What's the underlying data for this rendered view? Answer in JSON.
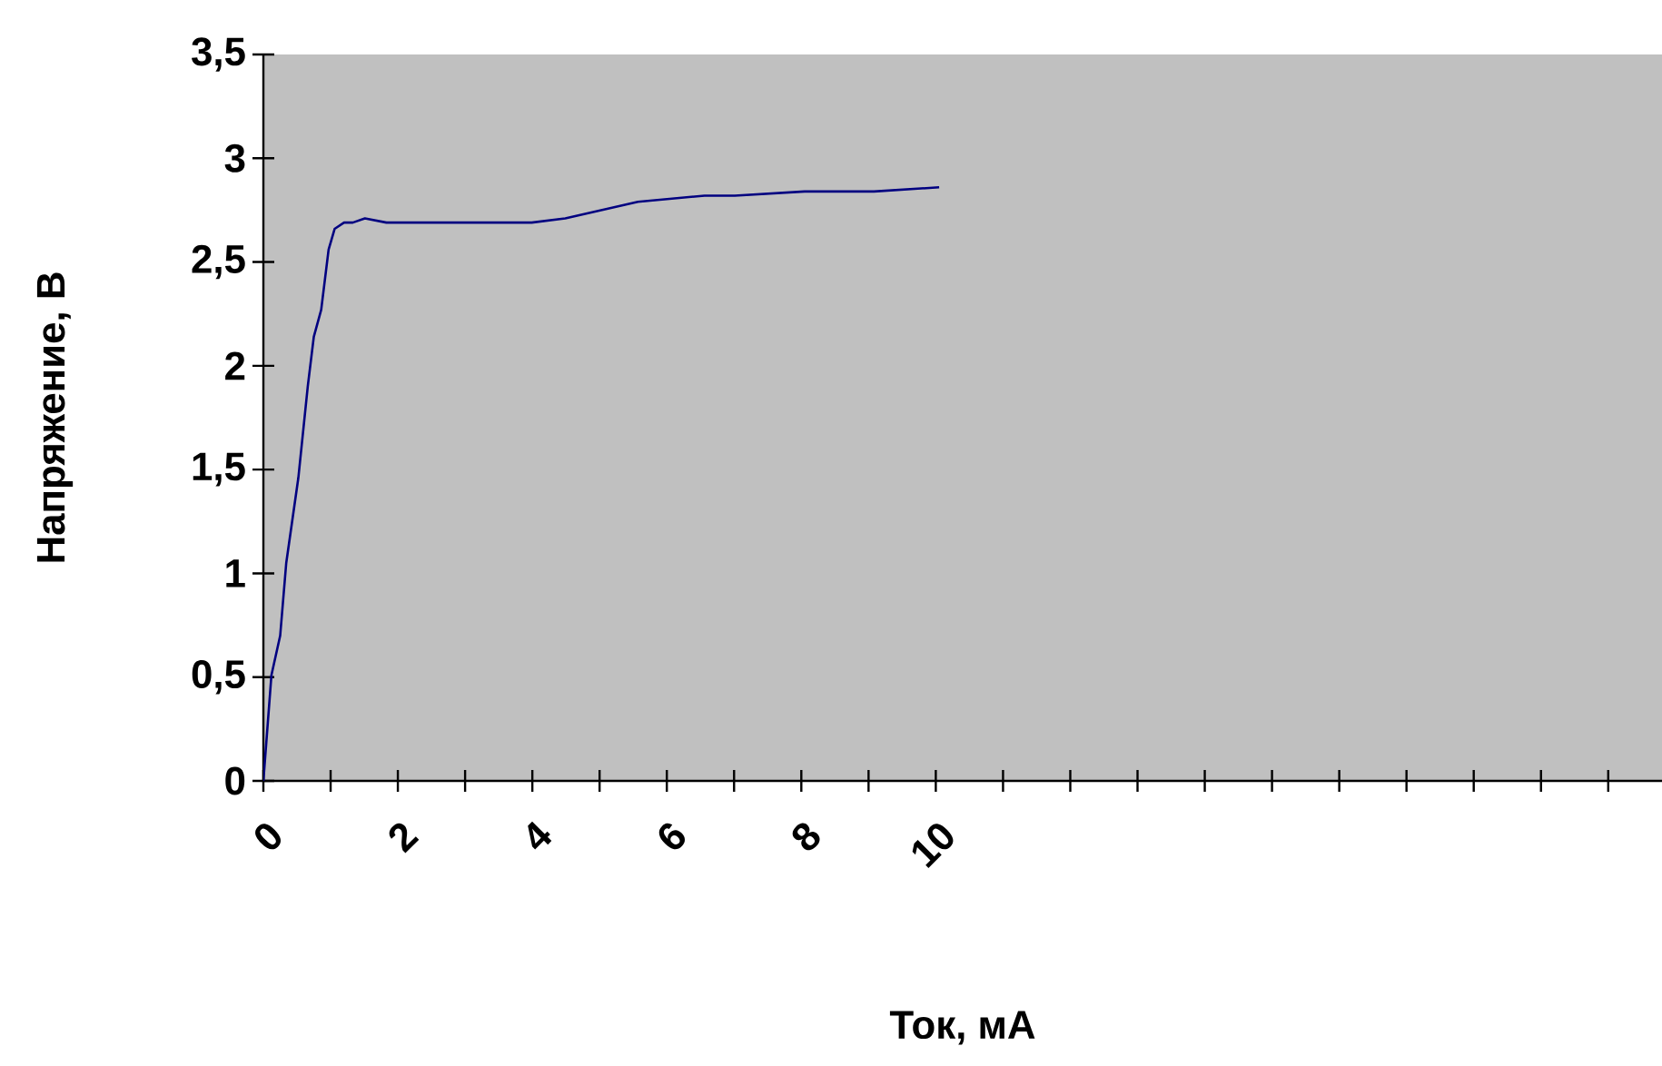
{
  "chart_data": {
    "type": "line",
    "xlabel": "Ток, мА",
    "ylabel": "Напряжение, В",
    "x": [
      0,
      0.12,
      0.25,
      0.34,
      0.52,
      0.66,
      0.75,
      0.86,
      0.97,
      1.06,
      1.2,
      1.33,
      1.51,
      1.83,
      3.99,
      4.49,
      5.57,
      6.56,
      7.01,
      8.05,
      9.08,
      10.05
    ],
    "series": [
      {
        "color": "#000080",
        "values": [
          0,
          0.51,
          0.7,
          1.05,
          1.46,
          1.9,
          2.14,
          2.27,
          2.56,
          2.66,
          2.69,
          2.69,
          2.71,
          2.69,
          2.69,
          2.71,
          2.79,
          2.82,
          2.82,
          2.84,
          2.84,
          2.86
        ]
      }
    ],
    "xlim": [
      0,
      20.8
    ],
    "xticks": [
      0,
      {
        "value": 1,
        "label": null
      },
      2,
      {
        "value": 3,
        "label": null
      },
      4,
      {
        "value": 5,
        "label": null
      },
      6,
      {
        "value": 7,
        "label": null
      },
      8,
      {
        "value": 9,
        "label": null
      },
      10,
      {
        "value": 11,
        "label": null
      },
      {
        "value": 12,
        "label": null
      },
      {
        "value": 13,
        "label": null
      },
      {
        "value": 14,
        "label": null
      },
      {
        "value": 15,
        "label": null
      },
      {
        "value": 16,
        "label": null
      },
      {
        "value": 17,
        "label": null
      },
      {
        "value": 18,
        "label": null
      },
      {
        "value": 19,
        "label": null
      },
      {
        "value": 20,
        "label": null
      }
    ],
    "ylim": [
      0,
      3.5
    ],
    "yticks": [
      0,
      {
        "value": 0.5,
        "label": "0,5"
      },
      1,
      {
        "value": 1.5,
        "label": "1,5"
      },
      2,
      {
        "value": 2.5,
        "label": "2,5"
      },
      3,
      {
        "value": 3.5,
        "label": "3,5"
      }
    ],
    "grid": false,
    "marker": "none"
  }
}
